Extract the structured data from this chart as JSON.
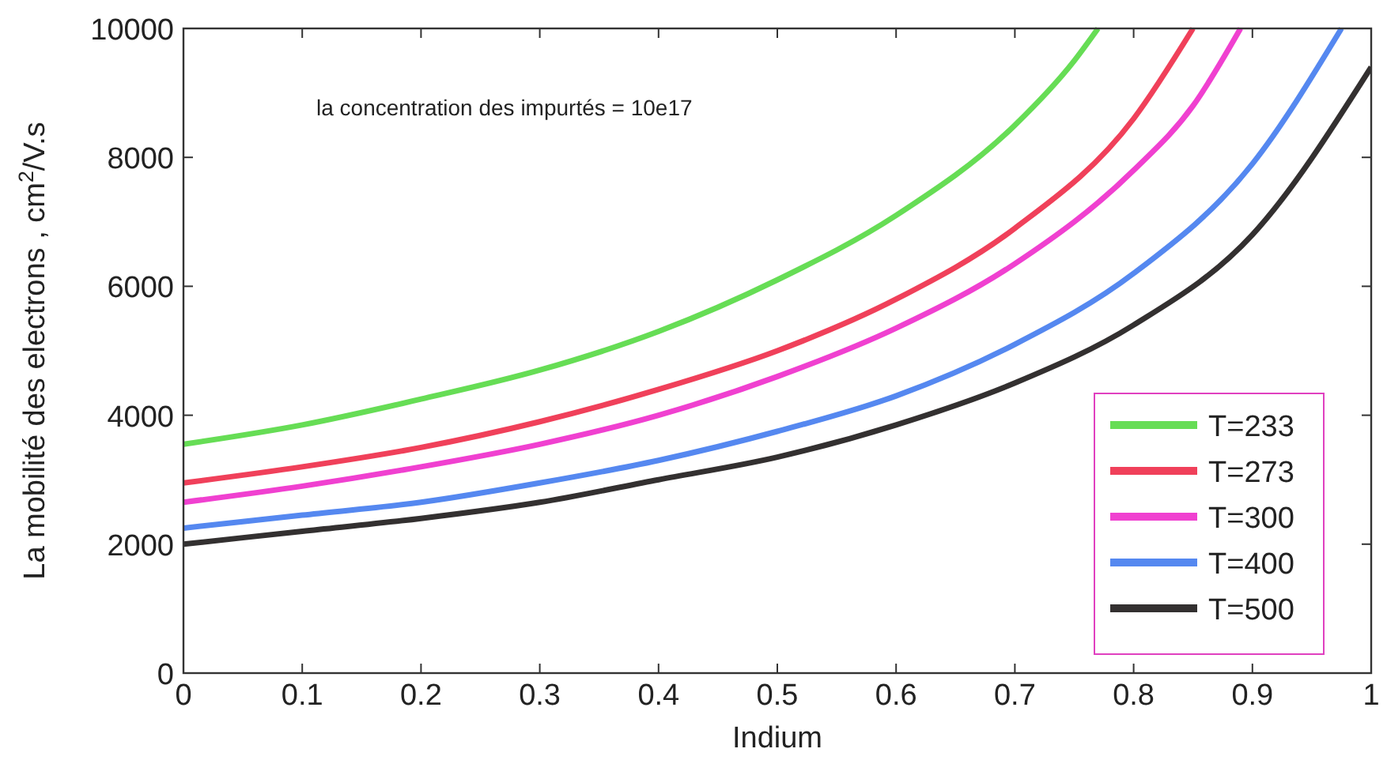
{
  "chart_data": {
    "type": "line",
    "xlabel": "Indium",
    "ylabel": "La mobilité des electrons , cm$^{2}$/V.s",
    "annotations": [
      "la concentration des impurtés = 10e17"
    ],
    "xlim": [
      0,
      1
    ],
    "xticks": [
      0,
      0.1,
      0.2,
      0.3,
      0.4,
      0.5,
      0.6,
      0.7,
      0.8,
      0.9,
      1
    ],
    "ylim": [
      0,
      10000
    ],
    "yticks": [
      0,
      2000,
      4000,
      6000,
      8000,
      10000
    ],
    "legend": "bottom right",
    "grid": false,
    "marker": "none",
    "line_style": "solid",
    "series": [
      {
        "name": "T=233",
        "color": "#66dd55",
        "x": [
          0,
          0.1,
          0.2,
          0.3,
          0.4,
          0.5,
          0.6,
          0.7,
          0.75,
          0.77
        ],
        "values": [
          3550,
          3850,
          4250,
          4700,
          5300,
          6100,
          7100,
          8500,
          9500,
          10000
        ]
      },
      {
        "name": "T=273",
        "color": "#f0405a",
        "x": [
          0,
          0.1,
          0.2,
          0.3,
          0.4,
          0.5,
          0.6,
          0.7,
          0.8,
          0.85
        ],
        "values": [
          2950,
          3200,
          3500,
          3900,
          4400,
          5000,
          5800,
          6900,
          8600,
          10000
        ]
      },
      {
        "name": "T=300",
        "color": "#f040d0",
        "x": [
          0,
          0.1,
          0.2,
          0.3,
          0.4,
          0.5,
          0.6,
          0.7,
          0.8,
          0.85,
          0.89
        ],
        "values": [
          2650,
          2900,
          3200,
          3550,
          4000,
          4600,
          5350,
          6350,
          7800,
          8800,
          10000
        ]
      },
      {
        "name": "T=400",
        "color": "#5588f0",
        "x": [
          0,
          0.1,
          0.2,
          0.3,
          0.4,
          0.5,
          0.6,
          0.7,
          0.8,
          0.9,
          0.975
        ],
        "values": [
          2250,
          2450,
          2650,
          2950,
          3300,
          3750,
          4300,
          5100,
          6200,
          7900,
          10000
        ]
      },
      {
        "name": "T=500",
        "color": "#333030",
        "x": [
          0,
          0.1,
          0.2,
          0.3,
          0.4,
          0.5,
          0.6,
          0.7,
          0.8,
          0.9,
          1
        ],
        "values": [
          2000,
          2200,
          2400,
          2650,
          3000,
          3350,
          3850,
          4500,
          5400,
          6800,
          9400
        ]
      }
    ]
  }
}
